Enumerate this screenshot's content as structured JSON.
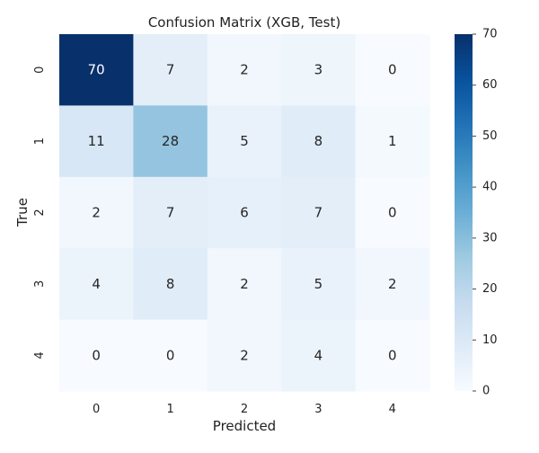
{
  "chart_data": {
    "type": "heatmap",
    "title": "Confusion Matrix (XGB, Test)",
    "xlabel": "Predicted",
    "ylabel": "True",
    "x_categories": [
      "0",
      "1",
      "2",
      "3",
      "4"
    ],
    "y_categories": [
      "0",
      "1",
      "2",
      "3",
      "4"
    ],
    "values": [
      [
        70,
        7,
        2,
        3,
        0
      ],
      [
        11,
        28,
        5,
        8,
        1
      ],
      [
        2,
        7,
        6,
        7,
        0
      ],
      [
        4,
        8,
        2,
        5,
        2
      ],
      [
        0,
        0,
        2,
        4,
        0
      ]
    ],
    "colorscale": "Blues",
    "vmin": 0,
    "vmax": 70,
    "colorbar_ticks": [
      "0",
      "10",
      "20",
      "30",
      "40",
      "50",
      "60",
      "70"
    ]
  }
}
